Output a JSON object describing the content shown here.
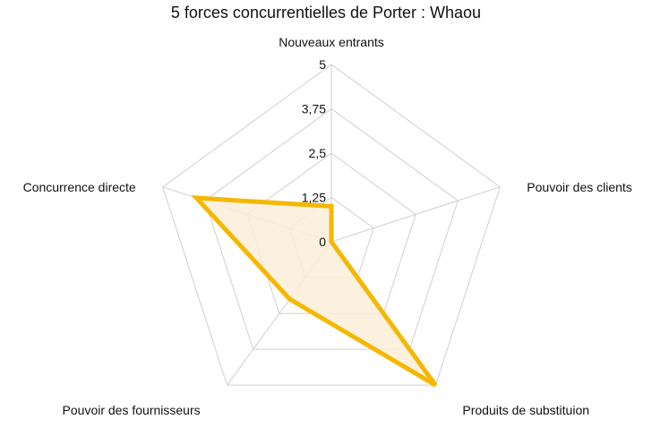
{
  "chart_data": {
    "type": "radar",
    "title": "5 forces concurrentielles de Porter : Whaou",
    "categories": [
      "Nouveaux entrants",
      "Pouvoir des clients",
      "Produits de substituion",
      "Pouvoir des fournisseurs",
      "Concurrence directe"
    ],
    "tick_labels": [
      "0",
      "1,25",
      "2,5",
      "3,75",
      "5"
    ],
    "ticks": [
      0,
      1.25,
      2.5,
      3.75,
      5
    ],
    "rlim": [
      0,
      5
    ],
    "series": [
      {
        "name": "Whaou",
        "values": [
          1,
          0,
          5,
          2,
          4
        ],
        "color": "#f5b700",
        "fill": "#fcefd9"
      }
    ],
    "grid": true,
    "legend": "none"
  }
}
